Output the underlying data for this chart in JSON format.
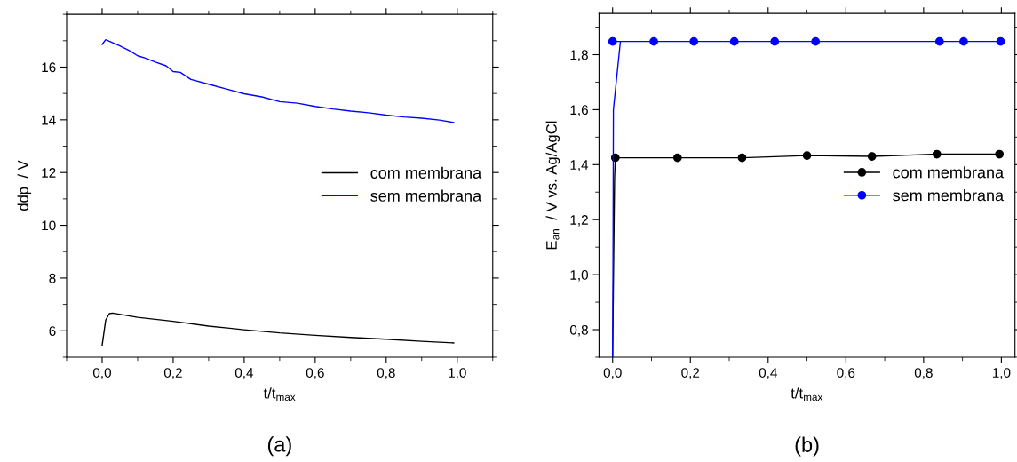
{
  "chart_data": [
    {
      "type": "line",
      "xlabel": "t/t$_{max}$",
      "ylabel": "ddp  / V",
      "xlim": [
        -0.1,
        1.1
      ],
      "ylim": [
        5,
        18
      ],
      "xticks": [
        {
          "value": 0,
          "label": "0,0"
        },
        {
          "value": 0.2,
          "label": "0,2"
        },
        {
          "value": 0.4,
          "label": "0,4"
        },
        {
          "value": 0.6,
          "label": "0,6"
        },
        {
          "value": 0.8,
          "label": "0,8"
        },
        {
          "value": 1,
          "label": "1,0"
        }
      ],
      "yticks": [
        6,
        8,
        10,
        12,
        14,
        16
      ],
      "grid": false,
      "legend": "right",
      "marker": "none",
      "annotations": [
        "(a)"
      ],
      "series": [
        {
          "name": "com membrana",
          "color": "#000000",
          "x": [
            0,
            0.01,
            0.02,
            0.03,
            0.1,
            0.2,
            0.3,
            0.4,
            0.5,
            0.6,
            0.7,
            0.8,
            0.9,
            0.99
          ],
          "values": [
            5.45,
            6.4,
            6.65,
            6.67,
            6.51,
            6.36,
            6.18,
            6.04,
            5.92,
            5.83,
            5.75,
            5.68,
            5.6,
            5.54
          ]
        },
        {
          "name": "sem membrana",
          "color": "#0000ff",
          "x": [
            0,
            0.01,
            0.02,
            0.05,
            0.08,
            0.1,
            0.12,
            0.15,
            0.18,
            0.2,
            0.22,
            0.25,
            0.3,
            0.35,
            0.4,
            0.45,
            0.5,
            0.55,
            0.6,
            0.65,
            0.7,
            0.75,
            0.8,
            0.85,
            0.9,
            0.95,
            0.99
          ],
          "values": [
            16.86,
            17.04,
            16.98,
            16.8,
            16.6,
            16.43,
            16.35,
            16.19,
            16.05,
            15.83,
            15.8,
            15.53,
            15.35,
            15.17,
            14.99,
            14.87,
            14.69,
            14.63,
            14.51,
            14.41,
            14.33,
            14.27,
            14.18,
            14.11,
            14.06,
            13.99,
            13.9
          ]
        }
      ]
    },
    {
      "type": "line",
      "xlabel": "t/t$_{max}$",
      "ylabel": "E$_{an}$  / V vs. Ag/AgCl",
      "xlim": [
        -0.035,
        1.035
      ],
      "ylim": [
        0.7,
        1.95
      ],
      "xticks": [
        {
          "value": 0,
          "label": "0,0"
        },
        {
          "value": 0.2,
          "label": "0,2"
        },
        {
          "value": 0.4,
          "label": "0,4"
        },
        {
          "value": 0.6,
          "label": "0,6"
        },
        {
          "value": 0.8,
          "label": "0,8"
        },
        {
          "value": 1,
          "label": "1,0"
        }
      ],
      "yticks": [
        {
          "value": 0.8,
          "label": "0,8"
        },
        {
          "value": 1.0,
          "label": "1,0"
        },
        {
          "value": 1.2,
          "label": "1,2"
        },
        {
          "value": 1.4,
          "label": "1,4"
        },
        {
          "value": 1.6,
          "label": "1,6"
        },
        {
          "value": 1.8,
          "label": "1,8"
        }
      ],
      "grid": false,
      "legend": "right",
      "marker": "circle",
      "annotations": [
        "(b)"
      ],
      "series": [
        {
          "color": "#000000",
          "x": [
            0,
            0.005,
            0.007
          ],
          "values": [
            0.7,
            1.35,
            1.425
          ],
          "marker": "none"
        },
        {
          "name": "com membrana",
          "color": "#000000",
          "x": [
            0.007,
            0.167,
            0.333,
            0.5,
            0.667,
            0.834,
            0.995
          ],
          "values": [
            1.425,
            1.425,
            1.425,
            1.433,
            1.43,
            1.438,
            1.438
          ]
        },
        {
          "color": "#0000ff",
          "x": [
            0,
            0.001,
            0.002,
            0.02
          ],
          "values": [
            0.7,
            1.03,
            1.6,
            1.848
          ],
          "marker": "none"
        },
        {
          "name": "sem membrana",
          "color": "#0000ff",
          "x": [
            0,
            0.106,
            0.209,
            0.313,
            0.417,
            0.522,
            0.841,
            0.903,
            0.998
          ],
          "values": [
            1.848,
            1.848,
            1.848,
            1.848,
            1.848,
            1.848,
            1.848,
            1.848,
            1.848
          ]
        }
      ]
    }
  ]
}
